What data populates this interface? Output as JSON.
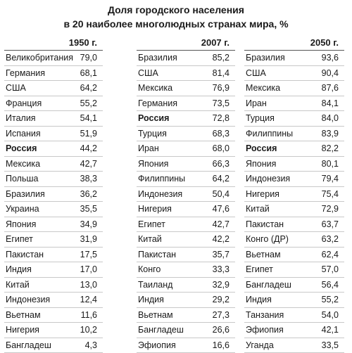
{
  "title_line1": "Доля городского населения",
  "title_line2": "в 20 наиболее многолюдных странах мира, %",
  "columns": [
    {
      "year": "1950 г.",
      "rows": [
        {
          "country": "Великобритания",
          "value": "79,0"
        },
        {
          "country": "Германия",
          "value": "68,1"
        },
        {
          "country": "США",
          "value": "64,2"
        },
        {
          "country": "Франция",
          "value": "55,2"
        },
        {
          "country": "Италия",
          "value": "54,1"
        },
        {
          "country": "Испания",
          "value": "51,9"
        },
        {
          "country": "Россия",
          "value": "44,2",
          "bold": true
        },
        {
          "country": "Мексика",
          "value": "42,7"
        },
        {
          "country": "Польша",
          "value": "38,3"
        },
        {
          "country": "Бразилия",
          "value": "36,2"
        },
        {
          "country": "Украина",
          "value": "35,5"
        },
        {
          "country": "Япония",
          "value": "34,9"
        },
        {
          "country": "Египет",
          "value": "31,9"
        },
        {
          "country": "Пакистан",
          "value": "17,5"
        },
        {
          "country": "Индия",
          "value": "17,0"
        },
        {
          "country": "Китай",
          "value": "13,0"
        },
        {
          "country": "Индонезия",
          "value": "12,4"
        },
        {
          "country": "Вьетнам",
          "value": "11,6"
        },
        {
          "country": "Нигерия",
          "value": "10,2"
        },
        {
          "country": "Бангладеш",
          "value": "4,3"
        }
      ]
    },
    {
      "year": "2007 г.",
      "rows": [
        {
          "country": "Бразилия",
          "value": "85,2"
        },
        {
          "country": "США",
          "value": "81,4"
        },
        {
          "country": "Мексика",
          "value": "76,9"
        },
        {
          "country": "Германия",
          "value": "73,5"
        },
        {
          "country": "Россия",
          "value": "72,8",
          "bold": true
        },
        {
          "country": "Турция",
          "value": "68,3"
        },
        {
          "country": "Иран",
          "value": "68,0"
        },
        {
          "country": "Япония",
          "value": "66,3"
        },
        {
          "country": "Филиппины",
          "value": "64,2"
        },
        {
          "country": "Индонезия",
          "value": "50,4"
        },
        {
          "country": "Нигерия",
          "value": "47,6"
        },
        {
          "country": "Египет",
          "value": "42,7"
        },
        {
          "country": "Китай",
          "value": "42,2"
        },
        {
          "country": "Пакистан",
          "value": "35,7"
        },
        {
          "country": "Конго",
          "value": "33,3"
        },
        {
          "country": "Таиланд",
          "value": "32,9"
        },
        {
          "country": "Индия",
          "value": "29,2"
        },
        {
          "country": "Вьетнам",
          "value": "27,3"
        },
        {
          "country": "Бангладеш",
          "value": "26,6"
        },
        {
          "country": "Эфиопия",
          "value": "16,6"
        }
      ]
    },
    {
      "year": "2050 г.",
      "rows": [
        {
          "country": "Бразилия",
          "value": "93,6"
        },
        {
          "country": "США",
          "value": "90,4"
        },
        {
          "country": "Мексика",
          "value": "87,6"
        },
        {
          "country": "Иран",
          "value": "84,1"
        },
        {
          "country": "Турция",
          "value": "84,0"
        },
        {
          "country": "Филиппины",
          "value": "83,9"
        },
        {
          "country": "Россия",
          "value": "82,2",
          "bold": true
        },
        {
          "country": "Япония",
          "value": "80,1"
        },
        {
          "country": "Индонезия",
          "value": "79,4"
        },
        {
          "country": "Нигерия",
          "value": "75,4"
        },
        {
          "country": "Китай",
          "value": "72,9"
        },
        {
          "country": "Пакистан",
          "value": "63,7"
        },
        {
          "country": "Конго (ДР)",
          "value": "63,2"
        },
        {
          "country": "Вьетнам",
          "value": "62,4"
        },
        {
          "country": "Египет",
          "value": "57,0"
        },
        {
          "country": "Бангладеш",
          "value": "56,4"
        },
        {
          "country": "Индия",
          "value": "55,2"
        },
        {
          "country": "Танзания",
          "value": "54,0"
        },
        {
          "country": "Эфиопия",
          "value": "42,1"
        },
        {
          "country": "Уганда",
          "value": "33,5"
        }
      ]
    }
  ]
}
